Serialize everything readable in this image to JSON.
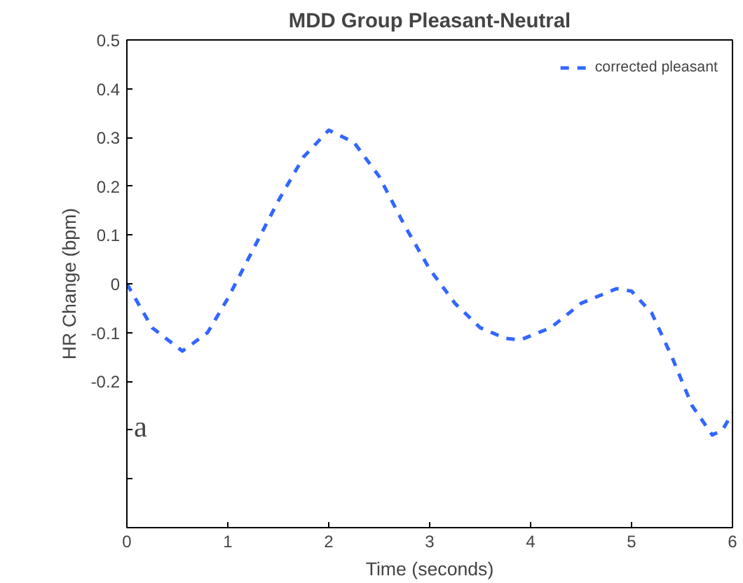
{
  "chart_data": {
    "type": "line",
    "title": "MDD Group Pleasant-Neutral",
    "xlabel": "Time (seconds)",
    "ylabel": "HR Change (bpm)",
    "annotations": [
      "a"
    ],
    "xlim": [
      0,
      6
    ],
    "xticks": [
      0,
      1,
      2,
      3,
      4,
      5,
      6
    ],
    "ylim": [
      -0.5,
      0.5
    ],
    "yticks": [
      {
        "value": -0.5,
        "label": null
      },
      {
        "value": -0.4,
        "label": null
      },
      {
        "value": -0.3,
        "label": null
      },
      -0.2,
      -0.1,
      0,
      0.1,
      0.2,
      0.3,
      0.4,
      0.5
    ],
    "grid": false,
    "legend": "top right",
    "line_style": "dashed",
    "marker": "none",
    "series": [
      {
        "name": "corrected pleasant",
        "color": "#3366ff",
        "x": [
          0,
          0.25,
          0.55,
          0.8,
          1.0,
          1.25,
          1.5,
          1.75,
          2.0,
          2.25,
          2.5,
          2.75,
          3.0,
          3.25,
          3.5,
          3.75,
          3.9,
          4.2,
          4.5,
          4.85,
          5.0,
          5.2,
          5.4,
          5.6,
          5.8,
          5.9,
          6.0
        ],
        "values": [
          0,
          -0.09,
          -0.138,
          -0.1,
          -0.03,
          0.07,
          0.17,
          0.26,
          0.315,
          0.29,
          0.22,
          0.12,
          0.03,
          -0.04,
          -0.09,
          -0.112,
          -0.115,
          -0.09,
          -0.04,
          -0.01,
          -0.015,
          -0.06,
          -0.15,
          -0.25,
          -0.31,
          -0.3,
          -0.265
        ]
      }
    ]
  }
}
